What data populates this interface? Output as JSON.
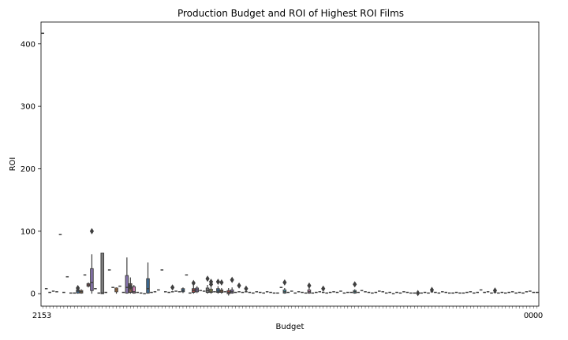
{
  "chart_data": {
    "type": "box",
    "title": "Production Budget and ROI of Highest ROI Films",
    "xlabel": "Budget",
    "ylabel": "ROI",
    "ylim": [
      -20,
      435
    ],
    "yticks": [
      0,
      100,
      200,
      300,
      400
    ],
    "grid": false,
    "legend": "none",
    "x_tick_labels_visible": [
      "2",
      "1",
      "5",
      "3",
      "0",
      "0",
      "0",
      "0"
    ],
    "boxes": [
      {
        "median": 417
      },
      {
        "median": 8
      },
      {
        "median": 2
      },
      {
        "median": 4
      },
      {
        "median": 3
      },
      {
        "median": 95
      },
      {
        "median": 2
      },
      {
        "median": 27
      },
      {
        "median": 1
      },
      {
        "median": 1
      },
      {
        "q1": 1,
        "median": 4,
        "q3": 6,
        "whisker_low": 0,
        "whisker_high": 8,
        "outliers": [
          9
        ]
      },
      {
        "q1": 1,
        "median": 3,
        "q3": 5,
        "whisker_low": 0,
        "whisker_high": 7
      },
      {
        "median": 30
      },
      {
        "q1": 12,
        "median": 14,
        "q3": 16,
        "whisker_low": 10,
        "whisker_high": 18
      },
      {
        "q1": 5,
        "median": 18,
        "q3": 40,
        "whisker_low": 0,
        "whisker_high": 63,
        "outliers": [
          100
        ]
      },
      {
        "median": 8
      },
      {
        "median": 1
      },
      {
        "q1": 0,
        "median": 1,
        "q3": 65,
        "whisker_low": 0,
        "whisker_high": 65
      },
      {
        "median": 2
      },
      {
        "median": 38
      },
      {
        "median": 10
      },
      {
        "q1": 3,
        "median": 6,
        "q3": 9,
        "whisker_low": 0,
        "whisker_high": 10
      },
      {
        "median": 12
      },
      {
        "median": 2
      },
      {
        "q1": 1,
        "median": 10,
        "q3": 29,
        "whisker_low": 0,
        "whisker_high": 58
      },
      {
        "q1": 2,
        "median": 10,
        "q3": 16,
        "whisker_low": 0,
        "whisker_high": 26,
        "outliers": [
          11
        ]
      },
      {
        "q1": 1,
        "median": 3,
        "q3": 11,
        "whisker_low": 0,
        "whisker_high": 14
      },
      {
        "median": 2
      },
      {
        "median": 1
      },
      {
        "median": 0
      },
      {
        "q1": 1,
        "median": 8,
        "q3": 24,
        "whisker_low": 0,
        "whisker_high": 50
      },
      {
        "median": 2
      },
      {
        "median": 3
      },
      {
        "median": 6
      },
      {
        "median": 38
      },
      {
        "median": 3
      },
      {
        "median": 2
      },
      {
        "median": 3,
        "outliers": [
          10
        ]
      },
      {
        "median": 4
      },
      {
        "median": 3
      },
      {
        "q1": 3,
        "median": 5,
        "q3": 8,
        "whisker_low": 1,
        "whisker_high": 10
      },
      {
        "median": 30
      },
      {
        "median": 1
      },
      {
        "q1": 2,
        "median": 5,
        "q3": 8,
        "whisker_low": 0,
        "whisker_high": 13,
        "outliers": [
          17
        ]
      },
      {
        "q1": 3,
        "median": 6,
        "q3": 9,
        "whisker_low": 1,
        "whisker_high": 12
      },
      {
        "median": 5
      },
      {
        "median": 4
      },
      {
        "q1": 2,
        "median": 5,
        "q3": 9,
        "whisker_low": 0,
        "whisker_high": 14,
        "outliers": [
          24
        ]
      },
      {
        "q1": 2,
        "median": 4,
        "q3": 7,
        "whisker_low": 0,
        "whisker_high": 10,
        "outliers": [
          19,
          15
        ]
      },
      {
        "median": 3
      },
      {
        "q1": 2,
        "median": 4,
        "q3": 8,
        "whisker_low": 0,
        "whisker_high": 12,
        "outliers": [
          19
        ]
      },
      {
        "q1": 2,
        "median": 4,
        "q3": 6,
        "whisker_low": 0,
        "whisker_high": 9,
        "outliers": [
          18
        ]
      },
      {
        "median": 3
      },
      {
        "q1": 0,
        "median": 2,
        "q3": 5,
        "whisker_low": -3,
        "whisker_high": 9
      },
      {
        "q1": 1,
        "median": 3,
        "q3": 6,
        "whisker_low": 0,
        "whisker_high": 10,
        "outliers": [
          22
        ]
      },
      {
        "median": 2
      },
      {
        "median": 3,
        "outliers": [
          13
        ]
      },
      {
        "median": 2
      },
      {
        "median": 3,
        "outliers": [
          8
        ]
      },
      {
        "median": 2
      },
      {
        "median": 1
      },
      {
        "median": 3
      },
      {
        "median": 2
      },
      {
        "median": 1
      },
      {
        "median": 3
      },
      {
        "median": 2
      },
      {
        "median": 1
      },
      {
        "median": 1
      },
      {
        "median": 10
      },
      {
        "q1": 1,
        "median": 3,
        "q3": 6,
        "whisker_low": 0,
        "whisker_high": 9,
        "outliers": [
          18
        ]
      },
      {
        "median": 2
      },
      {
        "median": 4
      },
      {
        "median": 1
      },
      {
        "median": 3
      },
      {
        "median": 2
      },
      {
        "median": 1
      },
      {
        "q1": 1,
        "median": 3,
        "q3": 6,
        "whisker_low": 0,
        "whisker_high": 9,
        "outliers": [
          13
        ]
      },
      {
        "median": 1
      },
      {
        "median": 2
      },
      {
        "median": 3
      },
      {
        "median": 2,
        "outliers": [
          8
        ]
      },
      {
        "median": 1
      },
      {
        "median": 2
      },
      {
        "median": 3
      },
      {
        "median": 2
      },
      {
        "median": 4
      },
      {
        "median": 1
      },
      {
        "median": 2
      },
      {
        "median": 2
      },
      {
        "q1": 1,
        "median": 3,
        "q3": 5,
        "whisker_low": 0,
        "whisker_high": 7,
        "outliers": [
          15
        ]
      },
      {
        "median": 2
      },
      {
        "median": 5
      },
      {
        "median": 3
      },
      {
        "median": 2
      },
      {
        "median": 1
      },
      {
        "median": 2
      },
      {
        "median": 4
      },
      {
        "median": 3
      },
      {
        "median": 1
      },
      {
        "median": 2
      },
      {
        "median": 0
      },
      {
        "median": 2
      },
      {
        "median": 1
      },
      {
        "median": 3
      },
      {
        "median": 2
      },
      {
        "median": 1
      },
      {
        "median": 1
      },
      {
        "median": 0,
        "outliers": [
          1
        ]
      },
      {
        "median": 1
      },
      {
        "median": 2
      },
      {
        "median": 1
      },
      {
        "median": 3,
        "outliers": [
          6
        ]
      },
      {
        "median": 2
      },
      {
        "median": 1
      },
      {
        "median": 3
      },
      {
        "median": 2
      },
      {
        "median": 1
      },
      {
        "median": 1
      },
      {
        "median": 2
      },
      {
        "median": 1
      },
      {
        "median": 1
      },
      {
        "median": 2
      },
      {
        "median": 3
      },
      {
        "median": 1
      },
      {
        "median": 2
      },
      {
        "median": 6
      },
      {
        "median": 2
      },
      {
        "median": 3
      },
      {
        "median": 1
      },
      {
        "median": 2,
        "outliers": [
          5
        ]
      },
      {
        "median": 1
      },
      {
        "median": 2
      },
      {
        "median": 1
      },
      {
        "median": 2
      },
      {
        "median": 3
      },
      {
        "median": 1
      },
      {
        "median": 2
      },
      {
        "median": 1
      },
      {
        "median": 3
      },
      {
        "median": 4
      },
      {
        "median": 2
      },
      {
        "median": 2
      }
    ],
    "palette": [
      "#3a6b97",
      "#d1823e",
      "#4e9558",
      "#b24a4a",
      "#8673ad",
      "#8a6450",
      "#cb80b3",
      "#7e7e7e",
      "#b1ae4f",
      "#4aa7b8"
    ]
  }
}
